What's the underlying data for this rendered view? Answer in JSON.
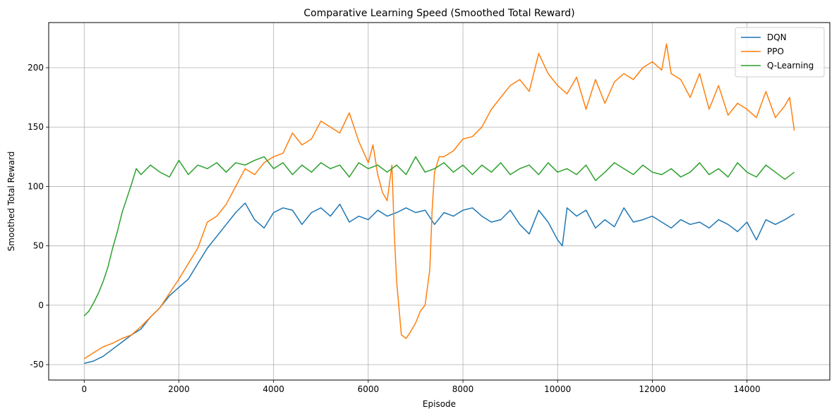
{
  "chart_data": {
    "type": "line",
    "title": "Comparative Learning Speed (Smoothed Total Reward)",
    "xlabel": "Episode",
    "ylabel": "Smoothed Total Reward",
    "xlim": [
      -750,
      15750
    ],
    "ylim": [
      -63,
      238
    ],
    "xticks": [
      0,
      2000,
      4000,
      6000,
      8000,
      10000,
      12000,
      14000
    ],
    "yticks": [
      -50,
      0,
      50,
      100,
      150,
      200
    ],
    "grid": true,
    "legend_position": "top-right",
    "series": [
      {
        "name": "DQN",
        "color": "#1f77b4",
        "x": [
          0,
          200,
          400,
          600,
          800,
          1000,
          1200,
          1400,
          1600,
          1800,
          2000,
          2200,
          2400,
          2600,
          2800,
          3000,
          3200,
          3400,
          3600,
          3800,
          4000,
          4200,
          4400,
          4600,
          4800,
          5000,
          5200,
          5400,
          5600,
          5800,
          6000,
          6200,
          6400,
          6600,
          6800,
          7000,
          7200,
          7400,
          7600,
          7800,
          8000,
          8200,
          8400,
          8600,
          8800,
          9000,
          9200,
          9400,
          9600,
          9800,
          10000,
          10100,
          10200,
          10400,
          10600,
          10800,
          11000,
          11200,
          11400,
          11600,
          11800,
          12000,
          12200,
          12400,
          12600,
          12800,
          13000,
          13200,
          13400,
          13600,
          13800,
          14000,
          14200,
          14400,
          14600,
          14800,
          15000
        ],
        "y": [
          -49,
          -47,
          -43,
          -37,
          -31,
          -25,
          -20,
          -10,
          -2,
          8,
          15,
          22,
          35,
          48,
          58,
          68,
          78,
          86,
          72,
          65,
          78,
          82,
          80,
          68,
          78,
          82,
          75,
          85,
          70,
          75,
          72,
          80,
          75,
          78,
          82,
          78,
          80,
          68,
          78,
          75,
          80,
          82,
          75,
          70,
          72,
          80,
          68,
          60,
          80,
          70,
          55,
          50,
          82,
          75,
          80,
          65,
          72,
          66,
          82,
          70,
          72,
          75,
          70,
          65,
          72,
          68,
          70,
          65,
          72,
          68,
          62,
          70,
          55,
          72,
          68,
          72,
          77
        ]
      },
      {
        "name": "PPO",
        "color": "#ff7f0e",
        "x": [
          0,
          200,
          400,
          600,
          800,
          1000,
          1200,
          1400,
          1600,
          1800,
          2000,
          2200,
          2400,
          2600,
          2800,
          3000,
          3200,
          3400,
          3600,
          3800,
          4000,
          4200,
          4400,
          4600,
          4800,
          5000,
          5200,
          5400,
          5600,
          5800,
          6000,
          6100,
          6200,
          6300,
          6400,
          6500,
          6550,
          6600,
          6700,
          6800,
          6900,
          7000,
          7100,
          7200,
          7300,
          7350,
          7400,
          7500,
          7600,
          7800,
          8000,
          8200,
          8400,
          8600,
          8800,
          9000,
          9200,
          9400,
          9600,
          9800,
          10000,
          10200,
          10400,
          10600,
          10800,
          11000,
          11200,
          11400,
          11600,
          11800,
          12000,
          12200,
          12300,
          12400,
          12600,
          12800,
          13000,
          13200,
          13400,
          13600,
          13800,
          14000,
          14200,
          14400,
          14600,
          14800,
          14900,
          15000
        ],
        "y": [
          -45,
          -40,
          -35,
          -32,
          -28,
          -25,
          -18,
          -10,
          -2,
          10,
          22,
          35,
          48,
          70,
          75,
          85,
          100,
          115,
          110,
          120,
          125,
          128,
          145,
          135,
          140,
          155,
          150,
          145,
          162,
          138,
          120,
          135,
          110,
          95,
          88,
          118,
          60,
          20,
          -25,
          -28,
          -22,
          -15,
          -5,
          0,
          30,
          80,
          112,
          125,
          125,
          130,
          140,
          142,
          150,
          165,
          175,
          185,
          190,
          180,
          212,
          195,
          185,
          178,
          192,
          165,
          190,
          170,
          188,
          195,
          190,
          200,
          205,
          198,
          220,
          195,
          190,
          175,
          195,
          165,
          185,
          160,
          170,
          165,
          158,
          180,
          158,
          168,
          175,
          147
        ]
      },
      {
        "name": "Q-Learning",
        "color": "#2ca02c",
        "x": [
          0,
          100,
          200,
          300,
          400,
          500,
          600,
          700,
          800,
          900,
          1000,
          1100,
          1200,
          1400,
          1600,
          1800,
          2000,
          2200,
          2400,
          2600,
          2800,
          3000,
          3200,
          3400,
          3600,
          3800,
          4000,
          4200,
          4400,
          4600,
          4800,
          5000,
          5200,
          5400,
          5600,
          5800,
          6000,
          6200,
          6400,
          6600,
          6800,
          7000,
          7200,
          7400,
          7600,
          7800,
          8000,
          8200,
          8400,
          8600,
          8800,
          9000,
          9200,
          9400,
          9600,
          9800,
          10000,
          10200,
          10400,
          10600,
          10800,
          11000,
          11200,
          11400,
          11600,
          11800,
          12000,
          12200,
          12400,
          12600,
          12800,
          13000,
          13200,
          13400,
          13600,
          13800,
          14000,
          14200,
          14400,
          14600,
          14800,
          15000
        ],
        "y": [
          -9,
          -5,
          2,
          10,
          20,
          32,
          48,
          62,
          78,
          90,
          102,
          115,
          110,
          118,
          112,
          108,
          122,
          110,
          118,
          115,
          120,
          112,
          120,
          118,
          122,
          125,
          115,
          120,
          110,
          118,
          112,
          120,
          115,
          118,
          108,
          120,
          115,
          118,
          112,
          118,
          110,
          125,
          112,
          115,
          120,
          112,
          118,
          110,
          118,
          112,
          120,
          110,
          115,
          118,
          110,
          120,
          112,
          115,
          110,
          118,
          105,
          112,
          120,
          115,
          110,
          118,
          112,
          110,
          115,
          108,
          112,
          120,
          110,
          115,
          108,
          120,
          112,
          108,
          118,
          112,
          106,
          112
        ]
      }
    ]
  }
}
